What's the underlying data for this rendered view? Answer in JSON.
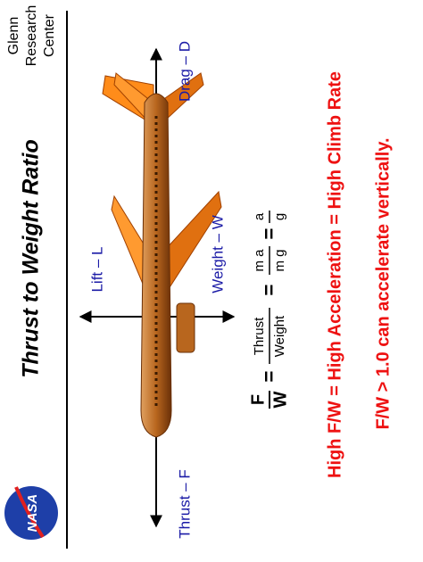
{
  "header": {
    "title": "Thrust  to  Weight  Ratio",
    "center": [
      "Glenn",
      "Research",
      "Center"
    ],
    "logo": "NASA"
  },
  "forces": {
    "thrust": "Thrust – F",
    "drag": "Drag – D",
    "lift": "Lift – L",
    "weight": "Weight – W"
  },
  "equation": {
    "lhs": {
      "num": "F",
      "den": "W"
    },
    "eq": "=",
    "ratio": {
      "num": "Thrust",
      "den": "Weight"
    },
    "mass": {
      "num": "m a",
      "den": "m g"
    },
    "accel": {
      "num": "a",
      "den": "g"
    }
  },
  "statements": [
    "High  F/W =  High  Acceleration = High  Climb  Rate",
    "F/W > 1.0  can  accelerate vertically."
  ]
}
